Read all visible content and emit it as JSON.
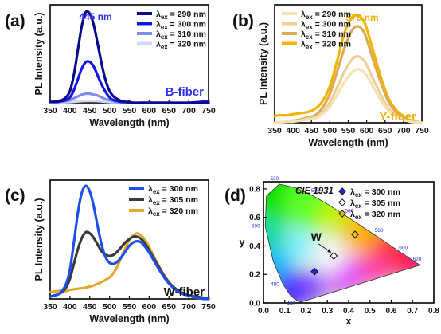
{
  "colors": {
    "ex290": "#0a0a8a",
    "ex300": "#1515e0",
    "ex310": "#7f8bea",
    "ex320": "#d2d8f4",
    "y290": "#f3e3b4",
    "y300": "#efcf94",
    "y310": "#d9ab55",
    "y320": "#f2b400",
    "w300": "#1f4fe8",
    "w305": "#3a3a3a",
    "w320": "#e0a82e",
    "blueText": "#2f2fe6",
    "yellowText": "#f0b000"
  },
  "chart_data": [
    {
      "type": "line",
      "panel_label": "(a)",
      "xlabel": "Wavelength (nm)",
      "ylabel": "PL Intensity (a.u.)",
      "x_ticks": [
        "350",
        "400",
        "450",
        "500",
        "550",
        "600",
        "650",
        "700",
        "750"
      ],
      "xlim": [
        350,
        750
      ],
      "ylim": [
        0,
        1.08
      ],
      "peak_label": "445 nm",
      "fiber_label": "B-fiber",
      "legend_prefix": "λ",
      "legend_sub": "ex",
      "legend": [
        " = 290 nm",
        " = 300 nm",
        " = 310 nm",
        " = 320 nm"
      ],
      "series": [
        {
          "x": [
            350,
            360,
            370,
            380,
            390,
            400,
            410,
            420,
            430,
            440,
            450,
            460,
            470,
            480,
            490,
            500,
            510,
            520,
            530,
            540,
            550,
            560,
            580,
            600,
            620,
            650,
            700,
            750
          ],
          "y": [
            0.01,
            0.01,
            0.02,
            0.03,
            0.06,
            0.13,
            0.31,
            0.58,
            0.85,
            1.0,
            0.98,
            0.86,
            0.65,
            0.43,
            0.25,
            0.13,
            0.07,
            0.04,
            0.02,
            0.01,
            0.01,
            0.0,
            0.0,
            0.0,
            0.0,
            0.0,
            0.0,
            0.0
          ]
        },
        {
          "x": [
            350,
            360,
            370,
            380,
            390,
            400,
            410,
            420,
            430,
            440,
            450,
            460,
            470,
            480,
            490,
            500,
            510,
            520,
            530,
            540,
            550,
            560,
            580,
            600,
            620,
            650,
            700,
            750
          ],
          "y": [
            0.01,
            0.01,
            0.01,
            0.02,
            0.03,
            0.06,
            0.14,
            0.26,
            0.38,
            0.45,
            0.45,
            0.4,
            0.3,
            0.2,
            0.12,
            0.06,
            0.03,
            0.02,
            0.01,
            0.01,
            0.0,
            0.0,
            0.0,
            0.0,
            0.0,
            0.0,
            0.0,
            0.02
          ]
        },
        {
          "x": [
            350,
            370,
            390,
            400,
            410,
            420,
            430,
            440,
            450,
            460,
            470,
            480,
            490,
            500,
            510,
            520,
            540,
            560,
            600,
            650,
            700,
            750
          ],
          "y": [
            0.01,
            0.01,
            0.02,
            0.03,
            0.05,
            0.07,
            0.09,
            0.1,
            0.1,
            0.09,
            0.08,
            0.06,
            0.04,
            0.03,
            0.02,
            0.01,
            0.0,
            0.0,
            0.0,
            0.0,
            0.0,
            0.01
          ]
        },
        {
          "x": [
            350,
            400,
            440,
            450,
            460,
            500,
            550,
            600,
            650,
            700,
            750
          ],
          "y": [
            0.0,
            0.01,
            0.02,
            0.02,
            0.02,
            0.01,
            0.0,
            0.0,
            0.0,
            0.0,
            0.0
          ]
        }
      ]
    },
    {
      "type": "line",
      "panel_label": "(b)",
      "xlabel": "Wavelength (nm)",
      "ylabel": "PL Intensity (a.u.)",
      "x_ticks": [
        "350",
        "400",
        "450",
        "500",
        "550",
        "600",
        "650",
        "700",
        "750"
      ],
      "xlim": [
        350,
        750
      ],
      "ylim": [
        0,
        1.1
      ],
      "peak_label": "570 nm",
      "fiber_label": "Y-fiber",
      "legend_prefix": "λ",
      "legend_sub": "ex",
      "legend": [
        " = 290 nm",
        " = 300 nm",
        " = 310 nm",
        " = 320 nm"
      ],
      "series": [
        {
          "x": [
            350,
            380,
            400,
            420,
            440,
            460,
            480,
            500,
            520,
            540,
            560,
            575,
            590,
            600,
            620,
            640,
            660,
            680,
            700,
            720,
            750
          ],
          "y": [
            0.0,
            0.01,
            0.01,
            0.02,
            0.03,
            0.04,
            0.08,
            0.15,
            0.26,
            0.38,
            0.47,
            0.5,
            0.48,
            0.44,
            0.32,
            0.2,
            0.11,
            0.06,
            0.03,
            0.01,
            0.0
          ]
        },
        {
          "x": [
            350,
            380,
            400,
            420,
            440,
            460,
            480,
            500,
            520,
            540,
            560,
            575,
            590,
            600,
            620,
            640,
            660,
            680,
            700,
            720,
            750
          ],
          "y": [
            0.0,
            0.01,
            0.02,
            0.02,
            0.04,
            0.05,
            0.1,
            0.19,
            0.33,
            0.48,
            0.59,
            0.62,
            0.59,
            0.54,
            0.39,
            0.25,
            0.13,
            0.07,
            0.03,
            0.01,
            0.0
          ]
        },
        {
          "x": [
            350,
            380,
            400,
            420,
            440,
            460,
            480,
            500,
            520,
            540,
            560,
            575,
            590,
            600,
            620,
            640,
            660,
            680,
            700,
            720,
            750
          ],
          "y": [
            0.0,
            0.01,
            0.02,
            0.03,
            0.05,
            0.07,
            0.14,
            0.27,
            0.48,
            0.7,
            0.86,
            0.9,
            0.86,
            0.78,
            0.56,
            0.36,
            0.19,
            0.1,
            0.05,
            0.02,
            0.0
          ]
        },
        {
          "x": [
            350,
            360,
            380,
            400,
            420,
            440,
            460,
            480,
            500,
            520,
            540,
            560,
            575,
            590,
            600,
            620,
            640,
            660,
            680,
            700,
            720,
            750
          ],
          "y": [
            0.06,
            0.07,
            0.07,
            0.08,
            0.09,
            0.1,
            0.13,
            0.2,
            0.34,
            0.58,
            0.84,
            0.98,
            1.0,
            0.96,
            0.88,
            0.64,
            0.41,
            0.22,
            0.12,
            0.06,
            0.02,
            0.0
          ]
        }
      ]
    },
    {
      "type": "line",
      "panel_label": "(c)",
      "xlabel": "Wavelength (nm)",
      "ylabel": "PL Intensity (a.u.)",
      "x_ticks": [
        "350",
        "400",
        "450",
        "500",
        "550",
        "600",
        "650",
        "700",
        "750"
      ],
      "xlim": [
        350,
        750
      ],
      "ylim": [
        0,
        1.05
      ],
      "fiber_label": "W-fiber",
      "legend_prefix": "λ",
      "legend_sub": "ex",
      "legend": [
        " = 300 nm",
        " = 305 nm",
        " = 320 nm"
      ],
      "series": [
        {
          "x": [
            350,
            360,
            370,
            380,
            390,
            400,
            410,
            420,
            430,
            440,
            450,
            460,
            470,
            480,
            490,
            500,
            510,
            520,
            530,
            540,
            550,
            560,
            570,
            580,
            590,
            600,
            620,
            640,
            660,
            680,
            700,
            720,
            740,
            750
          ],
          "y": [
            0.02,
            0.03,
            0.04,
            0.07,
            0.13,
            0.26,
            0.5,
            0.76,
            0.94,
            1.0,
            0.95,
            0.82,
            0.64,
            0.48,
            0.37,
            0.32,
            0.31,
            0.33,
            0.37,
            0.42,
            0.47,
            0.5,
            0.51,
            0.5,
            0.46,
            0.41,
            0.29,
            0.18,
            0.1,
            0.05,
            0.03,
            0.01,
            0.0,
            0.0
          ]
        },
        {
          "x": [
            350,
            360,
            370,
            380,
            390,
            400,
            410,
            420,
            430,
            440,
            450,
            460,
            470,
            480,
            490,
            500,
            510,
            520,
            530,
            540,
            550,
            560,
            570,
            580,
            590,
            600,
            620,
            640,
            660,
            680,
            700,
            720,
            740,
            750
          ],
          "y": [
            0.02,
            0.03,
            0.04,
            0.06,
            0.1,
            0.18,
            0.31,
            0.44,
            0.54,
            0.59,
            0.58,
            0.54,
            0.48,
            0.42,
            0.39,
            0.38,
            0.39,
            0.42,
            0.46,
            0.5,
            0.53,
            0.55,
            0.55,
            0.53,
            0.49,
            0.43,
            0.31,
            0.19,
            0.11,
            0.06,
            0.03,
            0.02,
            0.01,
            0.01
          ]
        },
        {
          "x": [
            350,
            370,
            390,
            400,
            420,
            440,
            460,
            480,
            500,
            510,
            520,
            530,
            540,
            550,
            560,
            570,
            580,
            590,
            600,
            620,
            640,
            660,
            680,
            700,
            720,
            750
          ],
          "y": [
            0.06,
            0.07,
            0.07,
            0.08,
            0.09,
            0.1,
            0.12,
            0.15,
            0.19,
            0.23,
            0.29,
            0.37,
            0.45,
            0.52,
            0.56,
            0.58,
            0.56,
            0.52,
            0.46,
            0.32,
            0.2,
            0.11,
            0.06,
            0.03,
            0.01,
            0.0
          ]
        }
      ]
    },
    {
      "type": "scatter",
      "panel_label": "(d)",
      "title": "CIE 1931",
      "xlabel": "x",
      "ylabel": "y",
      "x_ticks": [
        "0.0",
        "0.1",
        "0.2",
        "0.3",
        "0.4",
        "0.5",
        "0.6",
        "0.7",
        "0.8"
      ],
      "y_ticks": [
        "0.0",
        "0.2",
        "0.4",
        "0.6",
        "0.8"
      ],
      "xlim": [
        0,
        0.8
      ],
      "ylim": [
        0,
        0.85
      ],
      "white_label": "W",
      "legend_prefix": "λ",
      "legend_sub": "ex",
      "wavelength_labels": [
        "460",
        "480",
        "500",
        "520",
        "540",
        "560",
        "580",
        "600",
        "620"
      ],
      "wavelength_points": [
        [
          0.144,
          0.0297
        ],
        [
          0.0913,
          0.1327
        ],
        [
          0.0082,
          0.5384
        ],
        [
          0.0743,
          0.8338
        ],
        [
          0.2296,
          0.7543
        ],
        [
          0.3731,
          0.6245
        ],
        [
          0.5125,
          0.4866
        ],
        [
          0.627,
          0.3725
        ],
        [
          0.6915,
          0.3083
        ]
      ],
      "points": [
        {
          "name": " = 300 nm",
          "x": 0.24,
          "y": 0.22,
          "marker": "diamond-blue"
        },
        {
          "name": " = 305 nm",
          "x": 0.33,
          "y": 0.33,
          "marker": "diamond-white"
        },
        {
          "name": " = 320 nm",
          "x": 0.43,
          "y": 0.48,
          "marker": "diamond-yellow"
        }
      ]
    }
  ]
}
